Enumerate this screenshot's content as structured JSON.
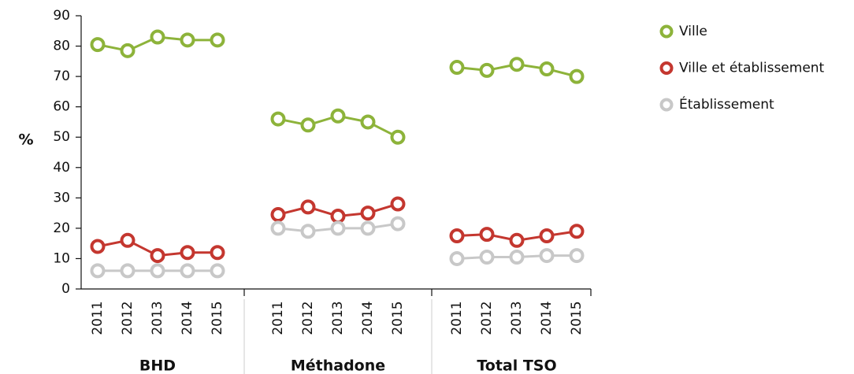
{
  "chart_data": {
    "type": "line",
    "ylabel": "%",
    "groups": [
      {
        "name": "BHD",
        "categories": [
          "2011",
          "2012",
          "2013",
          "2014",
          "2015"
        ]
      },
      {
        "name": "Méthadone",
        "categories": [
          "2011",
          "2012",
          "2013",
          "2014",
          "2015"
        ]
      },
      {
        "name": "Total TSO",
        "categories": [
          "2011",
          "2012",
          "2013",
          "2014",
          "2015"
        ]
      }
    ],
    "series": [
      {
        "name": "Ville",
        "color": "#8db33a",
        "values": [
          [
            80.5,
            78.5,
            83,
            82,
            82
          ],
          [
            56,
            54,
            57,
            55,
            50
          ],
          [
            73,
            72,
            74,
            72.5,
            70
          ]
        ]
      },
      {
        "name": "Ville et établissement",
        "color": "#c4372f",
        "values": [
          [
            14,
            16,
            11,
            12,
            12
          ],
          [
            24.5,
            27,
            24,
            25,
            28
          ],
          [
            17.5,
            18,
            16,
            17.5,
            19
          ]
        ]
      },
      {
        "name": "Établissement",
        "color": "#c8c8c8",
        "values": [
          [
            6,
            6,
            6,
            6,
            6
          ],
          [
            20,
            19,
            20,
            20,
            21.5
          ],
          [
            10,
            10.5,
            10.5,
            11,
            11
          ]
        ]
      }
    ],
    "ylim": [
      0,
      90
    ],
    "yticks": [
      0,
      10,
      20,
      30,
      40,
      50,
      60,
      70,
      80,
      90
    ],
    "legend": "right"
  }
}
